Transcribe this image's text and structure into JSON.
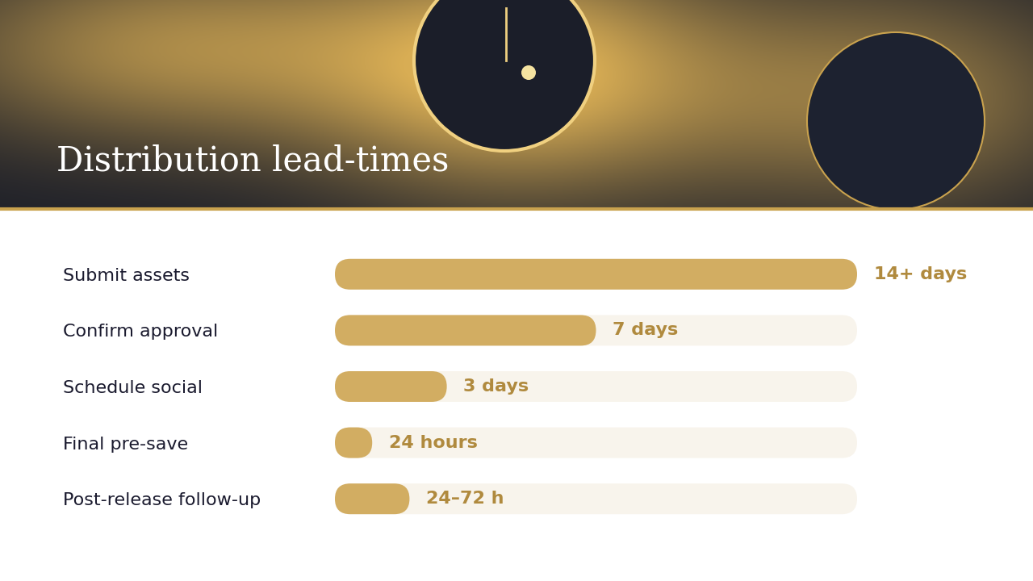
{
  "chart_data": {
    "type": "bar",
    "orientation": "horizontal",
    "title": "Distribution lead-times",
    "categories": [
      "Submit assets",
      "Confirm approval",
      "Schedule social",
      "Final pre-save",
      "Post-release follow-up"
    ],
    "values": [
      14,
      7,
      3,
      1,
      2
    ],
    "value_labels": [
      "14+ days",
      "7 days",
      "3 days",
      "24 hours",
      "24–72 h"
    ],
    "xlim": [
      0,
      14
    ],
    "data_labels": true,
    "tick_labels": "y",
    "grid": false,
    "color": "#d2ad62"
  }
}
